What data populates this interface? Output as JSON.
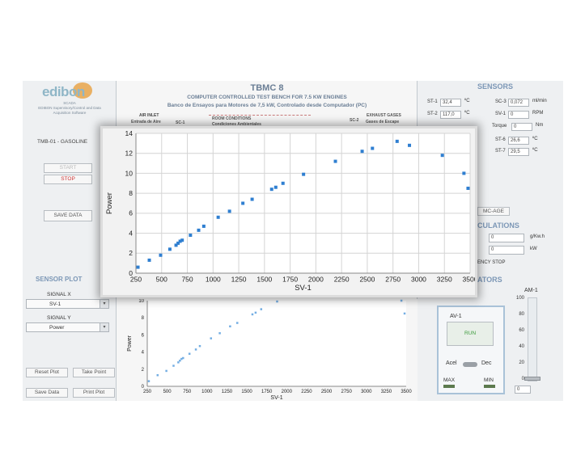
{
  "logo": {
    "brand": "edibon",
    "line1": "SCADA",
    "line2": "EDIBON Supervisory/Control and Data",
    "line3": "Acquisition Software"
  },
  "left_panel": {
    "model": "TMB-01 - GASOLINE",
    "start_label": "START",
    "stop_label": "STOP",
    "save_data_label": "SAVE DATA",
    "sensor_plot_title": "SENSOR PLOT",
    "signal_x_label": "SIGNAL X",
    "signal_x_value": "SV-1",
    "signal_y_label": "SIGNAL Y",
    "signal_y_value": "Power",
    "reset_plot": "Reset Plot",
    "take_point": "Take Point",
    "save_data_btn": "Save Data",
    "print_plot": "Print Plot"
  },
  "header": {
    "title": "TBMC 8",
    "subtitle1": "COMPUTER CONTROLLED TEST BENCH FOR 7.5 KW ENGINES",
    "subtitle2": "Banco de Ensayos para Motores de 7,5 kW, Controlado desde Computador (PC)",
    "air_inlet": "AIR INLET",
    "air_inlet_es": "Entrada de Aire",
    "sc1": "SC-1",
    "room_conditions": "ROOM CONDITIONS",
    "room_conditions_es": "Condiciones Ambientales",
    "sc2": "SC-2",
    "exhaust_gases": "EXHAUST GASES",
    "exhaust_gases_es": "Gases de Escape"
  },
  "sensors": {
    "title": "SENSORS",
    "items": [
      {
        "label": "ST-1",
        "value": "32,4",
        "unit": "ºC"
      },
      {
        "label": "ST-2",
        "value": "117,0",
        "unit": "ºC"
      },
      {
        "label": "SC-3",
        "value": "0,072",
        "unit": "ml/min"
      },
      {
        "label": "SV-1",
        "value": "0",
        "unit": "RPM"
      },
      {
        "label": "Torque",
        "value": "0",
        "unit": "Nm"
      },
      {
        "label": "ST-6",
        "value": "26,6",
        "unit": "ºC"
      },
      {
        "label": "ST-7",
        "value": "29,5",
        "unit": "ºC"
      }
    ],
    "mc_age": "MC-AGE"
  },
  "calculations": {
    "title": "CULATIONS",
    "val1": "0",
    "unit1": "g/Kw.h",
    "val2": "0",
    "unit2": "kW",
    "emergency": "ENCY STOP"
  },
  "actuators": {
    "title": "ATORS",
    "av1_label": "AV-1",
    "am1_label": "AM-1",
    "run_label": "RUN",
    "acel_label": "Acel",
    "dec_label": "Dec",
    "max_label": "MAX",
    "min_label": "MIN",
    "scale": [
      "100",
      "80",
      "60",
      "40",
      "20",
      "0"
    ],
    "am1_value": "0"
  },
  "chart_data": [
    {
      "type": "scatter",
      "xlabel": "SV-1",
      "ylabel": "Power",
      "xlim": [
        250,
        3500
      ],
      "ylim": [
        0,
        14
      ],
      "xticks": [
        250,
        500,
        750,
        1000,
        1250,
        1500,
        1750,
        2000,
        2250,
        2500,
        2750,
        3000,
        3250,
        3500
      ],
      "yticks": [
        0,
        2,
        4,
        6,
        8,
        10,
        12,
        14
      ],
      "grid": true,
      "color": "#2f7fd1",
      "series": [
        {
          "x": [
            270,
            380,
            490,
            580,
            640,
            660,
            680,
            700,
            780,
            860,
            910,
            1050,
            1160,
            1290,
            1380,
            1570,
            1610,
            1680,
            1880,
            2190,
            2450,
            2550,
            2790,
            2910,
            3230,
            3440,
            3480
          ],
          "y": [
            0.6,
            1.3,
            1.8,
            2.4,
            2.8,
            3.0,
            3.2,
            3.3,
            3.8,
            4.3,
            4.7,
            5.6,
            6.2,
            7.0,
            7.4,
            8.4,
            8.6,
            9.0,
            9.9,
            11.2,
            12.2,
            12.5,
            13.2,
            12.8,
            11.8,
            10.0,
            8.5
          ]
        }
      ]
    },
    {
      "type": "scatter",
      "xlabel": "SV-1",
      "ylabel": "Power",
      "xlim": [
        250,
        3500
      ],
      "ylim": [
        0,
        10
      ],
      "xticks": [
        250,
        500,
        750,
        1000,
        1250,
        1500,
        1750,
        2000,
        2250,
        2500,
        2750,
        3000,
        3250,
        3500
      ],
      "yticks": [
        0,
        2,
        4,
        6,
        8,
        10
      ],
      "grid": false,
      "color": "#74aee3",
      "series": [
        {
          "x": [
            270,
            380,
            490,
            580,
            640,
            660,
            680,
            700,
            780,
            860,
            910,
            1050,
            1160,
            1290,
            1380,
            1570,
            1610,
            1680,
            1880,
            3440,
            3480
          ],
          "y": [
            0.6,
            1.3,
            1.8,
            2.4,
            2.8,
            3.0,
            3.2,
            3.3,
            3.8,
            4.3,
            4.7,
            5.6,
            6.2,
            7.0,
            7.4,
            8.4,
            8.6,
            9.0,
            9.9,
            10.0,
            8.5
          ]
        }
      ]
    }
  ]
}
